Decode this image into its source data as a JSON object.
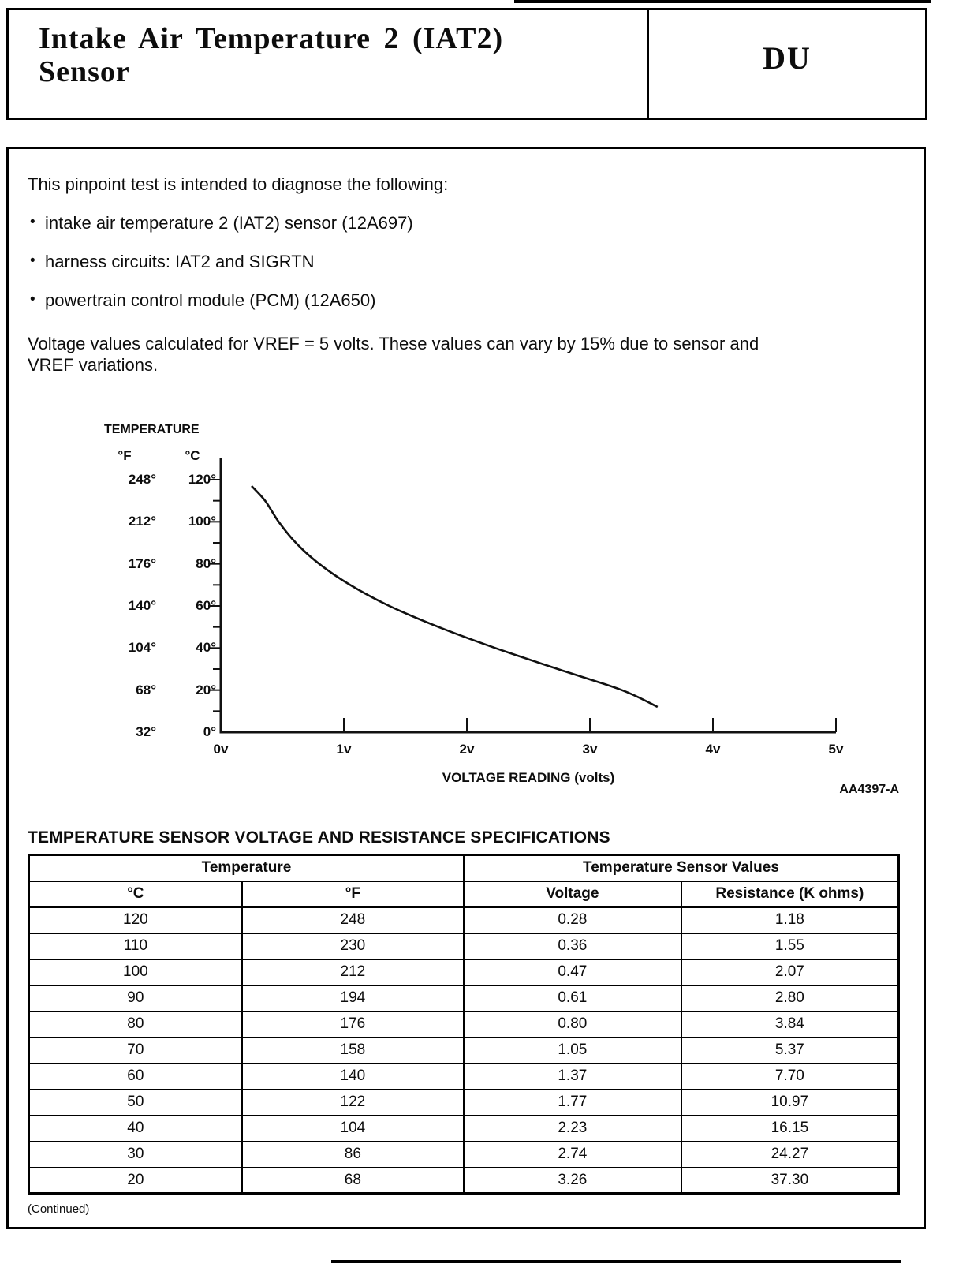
{
  "page": {
    "header": {
      "title_line1": "Intake Air Temperature 2 (IAT2)",
      "title_line2": "Sensor",
      "section_code": "DU"
    },
    "intro": "This pinpoint test is intended to diagnose the following:",
    "bullets": [
      "intake air temperature 2 (IAT2) sensor (12A697)",
      "harness circuits: IAT2 and SIGRTN",
      "powertrain control module (PCM) (12A650)"
    ],
    "note_lines": [
      "Voltage values calculated for VREF = 5 volts. These values can vary by 15% due to sensor and",
      "VREF variations."
    ],
    "continued": "(Continued)"
  },
  "chart_data": {
    "type": "line",
    "y_axis_title": "TEMPERATURE",
    "y_unit_labels": [
      "°F",
      "°C"
    ],
    "y_ticks_f": [
      "248°",
      "212°",
      "176°",
      "140°",
      "104°",
      "68°",
      "32°"
    ],
    "y_ticks_c": [
      "120°",
      "100°",
      "80°",
      "60°",
      "40°",
      "20°",
      "0°"
    ],
    "x_ticks": [
      "0v",
      "1v",
      "2v",
      "3v",
      "4v",
      "5v"
    ],
    "xlabel": "VOLTAGE READING (volts)",
    "figure_code": "AA4397-A",
    "x_range_volts": [
      0,
      5
    ],
    "y_range_c": [
      0,
      120
    ],
    "grid": false,
    "legend": false,
    "series": [
      {
        "name": "IAT2 sensor voltage vs temperature",
        "x_volts": [
          0.25,
          0.36,
          0.47,
          0.61,
          0.8,
          1.05,
          1.37,
          1.77,
          2.23,
          2.74,
          3.26,
          3.55
        ],
        "y_c": [
          117,
          110,
          100,
          90,
          80,
          70,
          60,
          50,
          40,
          30,
          20,
          12
        ]
      }
    ]
  },
  "spec_table": {
    "title": "TEMPERATURE SENSOR VOLTAGE AND RESISTANCE SPECIFICATIONS",
    "group_headers": [
      "Temperature",
      "Temperature Sensor Values"
    ],
    "columns": [
      "°C",
      "°F",
      "Voltage",
      "Resistance (K ohms)"
    ],
    "rows": [
      [
        "120",
        "248",
        "0.28",
        "1.18"
      ],
      [
        "110",
        "230",
        "0.36",
        "1.55"
      ],
      [
        "100",
        "212",
        "0.47",
        "2.07"
      ],
      [
        "90",
        "194",
        "0.61",
        "2.80"
      ],
      [
        "80",
        "176",
        "0.80",
        "3.84"
      ],
      [
        "70",
        "158",
        "1.05",
        "5.37"
      ],
      [
        "60",
        "140",
        "1.37",
        "7.70"
      ],
      [
        "50",
        "122",
        "1.77",
        "10.97"
      ],
      [
        "40",
        "104",
        "2.23",
        "16.15"
      ],
      [
        "30",
        "86",
        "2.74",
        "24.27"
      ],
      [
        "20",
        "68",
        "3.26",
        "37.30"
      ]
    ]
  }
}
